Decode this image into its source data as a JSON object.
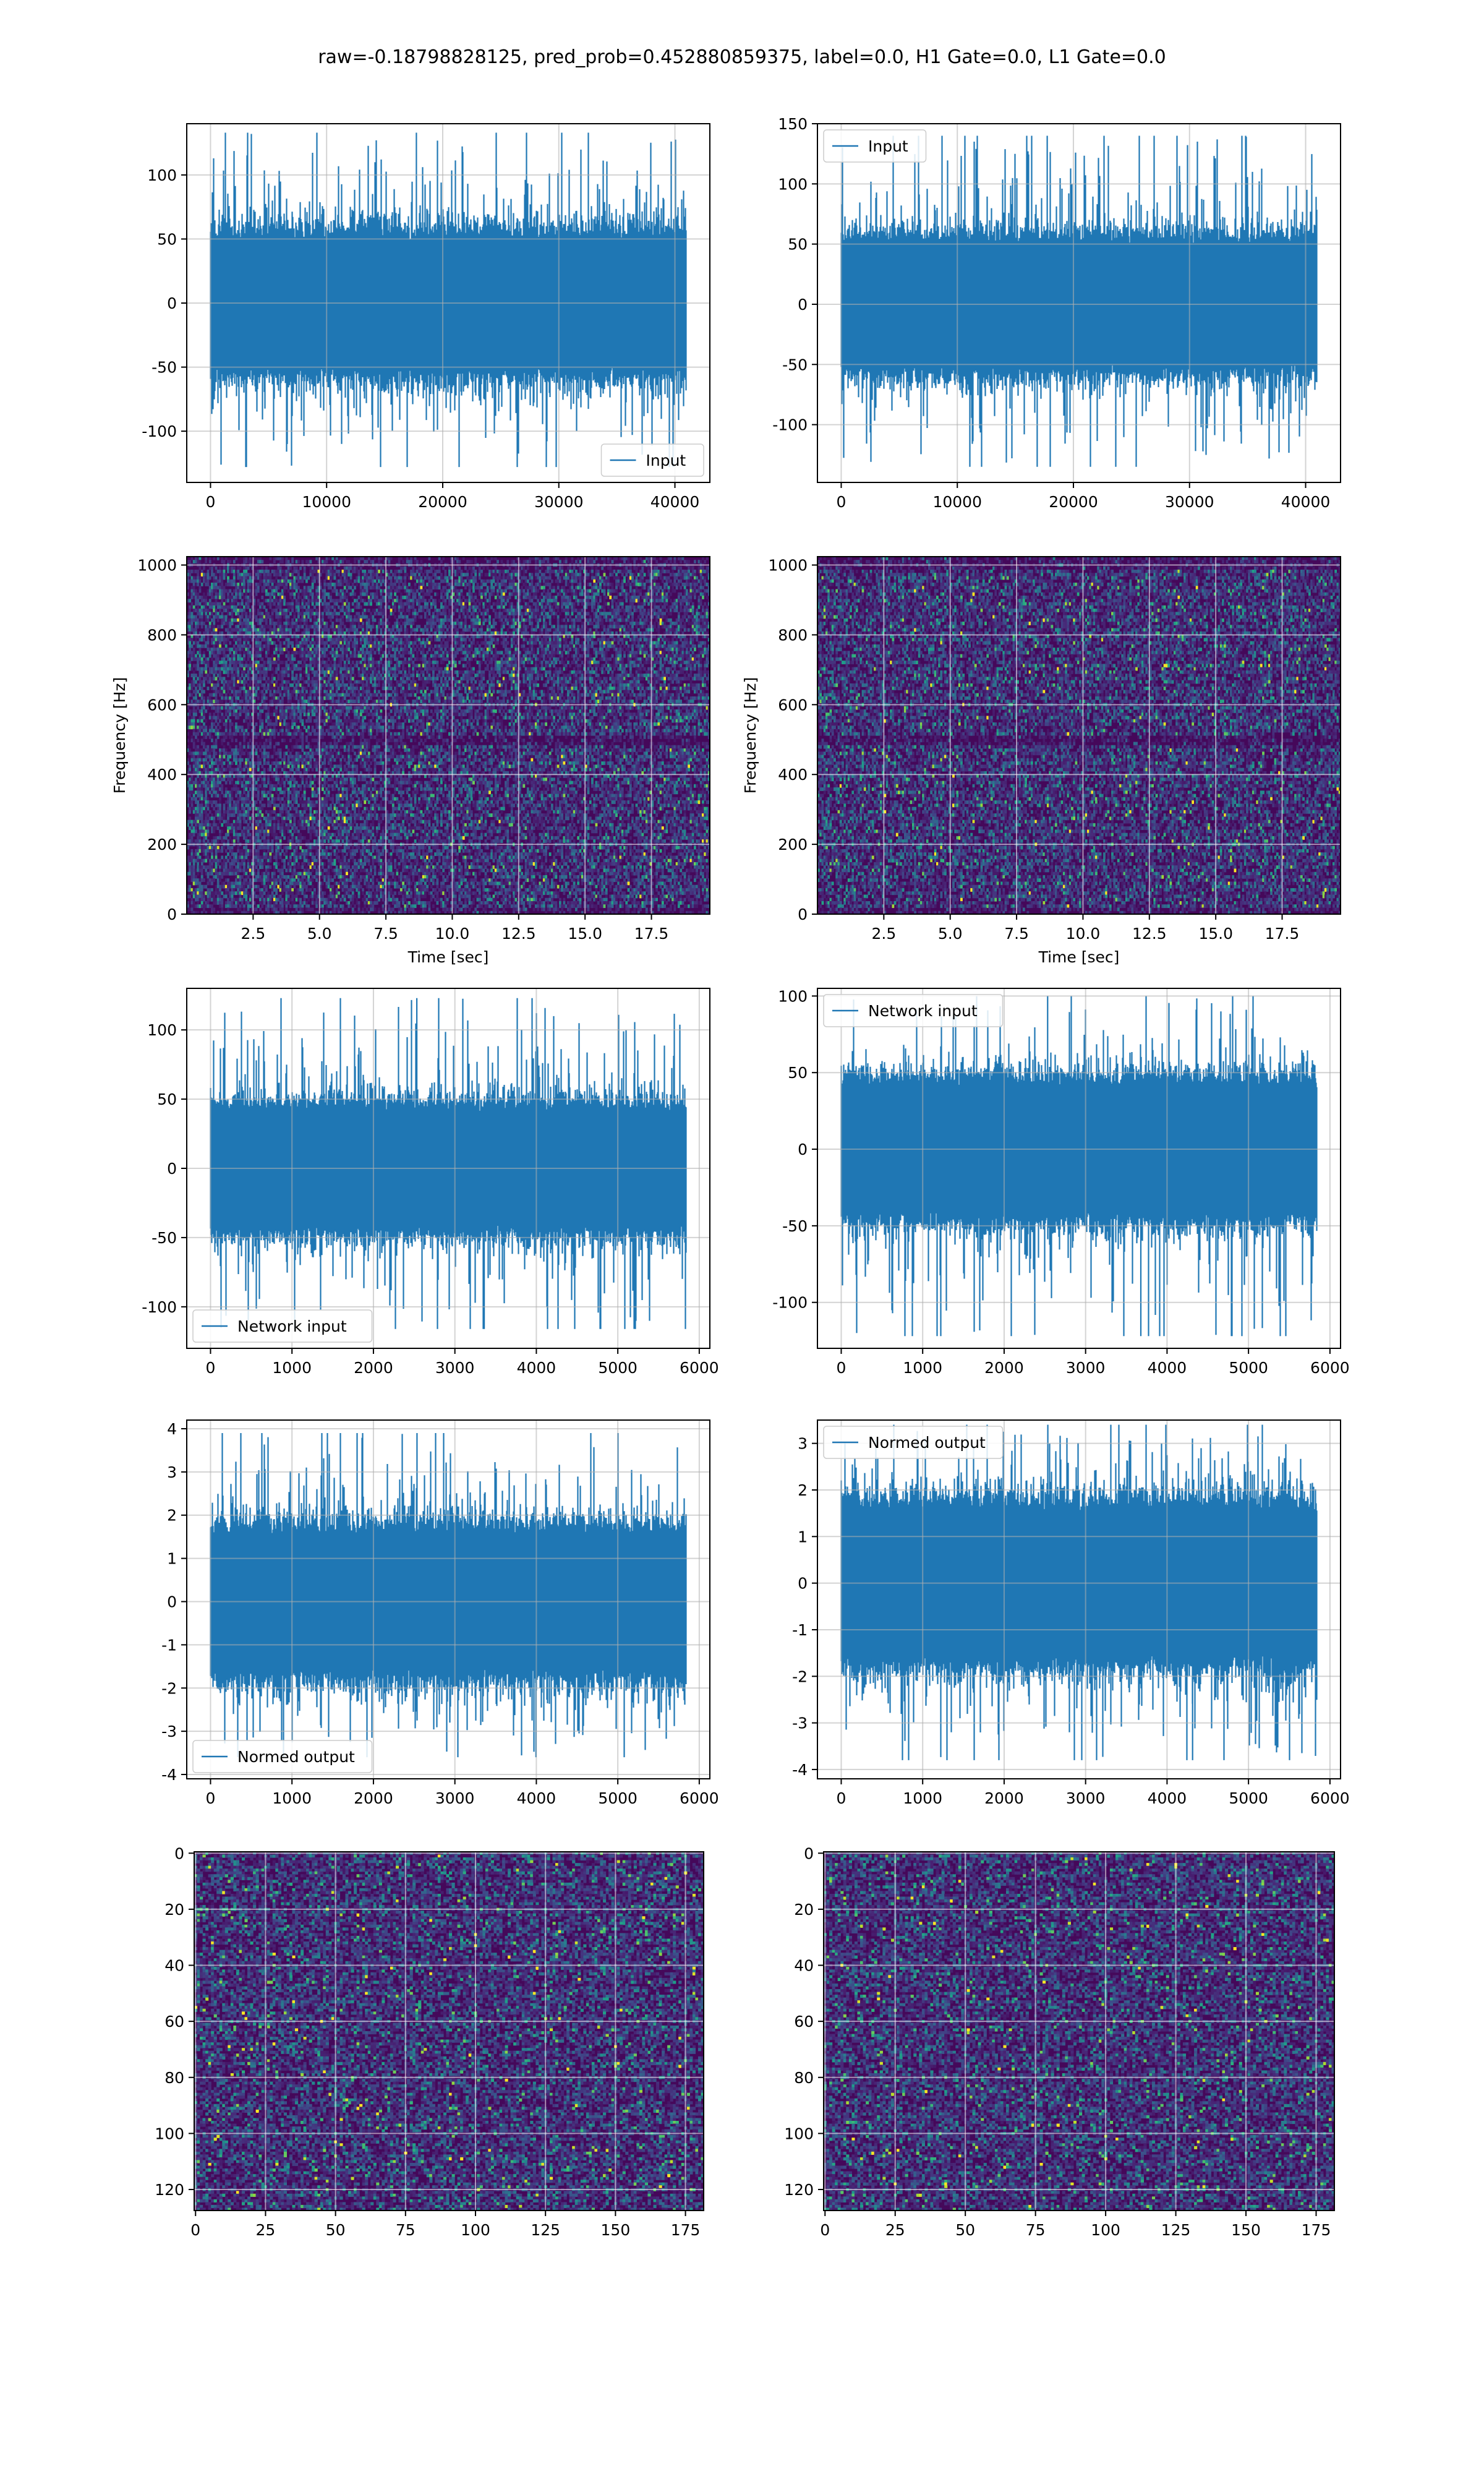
{
  "figure": {
    "suptitle": "raw=-0.18798828125, pred_prob=0.452880859375, label=0.0, H1 Gate=0.0, L1 Gate=0.0"
  },
  "chart_data": [
    {
      "id": "r1c1",
      "type": "line",
      "title": "",
      "xlabel": "",
      "ylabel": "",
      "xlim": [
        -2048,
        43008
      ],
      "ylim": [
        -140,
        140
      ],
      "xticks": [
        0,
        10000,
        20000,
        30000,
        40000
      ],
      "yticks": [
        -100,
        -50,
        0,
        50,
        100
      ],
      "grid": true,
      "legend": {
        "position": "lower-right",
        "entries": [
          "Input"
        ]
      },
      "series": [
        {
          "name": "Input",
          "color": "#1f77b4",
          "n_points": 40960,
          "x_range": [
            0,
            40960
          ],
          "envelope": {
            "core_amplitude": 55,
            "peak_max": 133,
            "peak_min": -128
          }
        }
      ]
    },
    {
      "id": "r1c2",
      "type": "line",
      "title": "",
      "xlabel": "",
      "ylabel": "",
      "xlim": [
        -2048,
        43008
      ],
      "ylim": [
        -148,
        150
      ],
      "xticks": [
        0,
        10000,
        20000,
        30000,
        40000
      ],
      "yticks": [
        -100,
        -50,
        0,
        50,
        100,
        150
      ],
      "grid": true,
      "legend": {
        "position": "upper-left",
        "entries": [
          "Input"
        ]
      },
      "series": [
        {
          "name": "Input",
          "color": "#1f77b4",
          "n_points": 40960,
          "x_range": [
            0,
            40960
          ],
          "envelope": {
            "core_amplitude": 55,
            "peak_max": 140,
            "peak_min": -135
          }
        }
      ]
    },
    {
      "id": "r2c1",
      "type": "heatmap",
      "title": "",
      "xlabel": "Time [sec]",
      "ylabel": "Frequency [Hz]",
      "xlim": [
        0,
        19.7
      ],
      "ylim": [
        0,
        1024
      ],
      "xticks": [
        2.5,
        5.0,
        7.5,
        10.0,
        12.5,
        15.0,
        17.5
      ],
      "yticks": [
        0,
        200,
        400,
        600,
        800,
        1000
      ],
      "grid": true,
      "colormap": "viridis",
      "note_band_hz": [
        480,
        510
      ]
    },
    {
      "id": "r2c2",
      "type": "heatmap",
      "title": "",
      "xlabel": "Time [sec]",
      "ylabel": "Frequency [Hz]",
      "xlim": [
        0,
        19.7
      ],
      "ylim": [
        0,
        1024
      ],
      "xticks": [
        2.5,
        5.0,
        7.5,
        10.0,
        12.5,
        15.0,
        17.5
      ],
      "yticks": [
        0,
        200,
        400,
        600,
        800,
        1000
      ],
      "grid": true,
      "colormap": "viridis",
      "note_band_hz": [
        480,
        510
      ]
    },
    {
      "id": "r3c1",
      "type": "line",
      "title": "",
      "xlabel": "",
      "ylabel": "",
      "xlim": [
        -292,
        6130
      ],
      "ylim": [
        -130,
        130
      ],
      "xticks": [
        0,
        1000,
        2000,
        3000,
        4000,
        5000,
        6000
      ],
      "yticks": [
        -100,
        -50,
        0,
        50,
        100
      ],
      "grid": true,
      "legend": {
        "position": "lower-left",
        "entries": [
          "Network input"
        ]
      },
      "series": [
        {
          "name": "Network input",
          "color": "#1f77b4",
          "n_points": 5840,
          "x_range": [
            0,
            5840
          ],
          "envelope": {
            "core_amplitude": 45,
            "peak_max": 123,
            "peak_min": -116
          }
        }
      ]
    },
    {
      "id": "r3c2",
      "type": "line",
      "title": "",
      "xlabel": "",
      "ylabel": "",
      "xlim": [
        -292,
        6130
      ],
      "ylim": [
        -130,
        105
      ],
      "xticks": [
        0,
        1000,
        2000,
        3000,
        4000,
        5000,
        6000
      ],
      "yticks": [
        -100,
        -50,
        0,
        50,
        100
      ],
      "grid": true,
      "legend": {
        "position": "upper-left",
        "entries": [
          "Network input"
        ]
      },
      "series": [
        {
          "name": "Network input",
          "color": "#1f77b4",
          "n_points": 5840,
          "x_range": [
            0,
            5840
          ],
          "envelope": {
            "core_amplitude": 45,
            "peak_max": 100,
            "peak_min": -122
          }
        }
      ]
    },
    {
      "id": "r4c1",
      "type": "line",
      "title": "",
      "xlabel": "",
      "ylabel": "",
      "xlim": [
        -292,
        6130
      ],
      "ylim": [
        -4.1,
        4.2
      ],
      "xticks": [
        0,
        1000,
        2000,
        3000,
        4000,
        5000,
        6000
      ],
      "yticks": [
        -4,
        -3,
        -2,
        -1,
        0,
        1,
        2,
        3,
        4
      ],
      "grid": true,
      "legend": {
        "position": "lower-left",
        "entries": [
          "Normed output"
        ]
      },
      "series": [
        {
          "name": "Normed output",
          "color": "#1f77b4",
          "n_points": 5840,
          "x_range": [
            0,
            5840
          ],
          "envelope": {
            "core_amplitude": 1.7,
            "peak_max": 3.9,
            "peak_min": -3.6
          }
        }
      ]
    },
    {
      "id": "r4c2",
      "type": "line",
      "title": "",
      "xlabel": "",
      "ylabel": "",
      "xlim": [
        -292,
        6130
      ],
      "ylim": [
        -4.2,
        3.5
      ],
      "xticks": [
        0,
        1000,
        2000,
        3000,
        4000,
        5000,
        6000
      ],
      "yticks": [
        -4,
        -3,
        -2,
        -1,
        0,
        1,
        2,
        3
      ],
      "grid": true,
      "legend": {
        "position": "upper-left",
        "entries": [
          "Normed output"
        ]
      },
      "series": [
        {
          "name": "Normed output",
          "color": "#1f77b4",
          "n_points": 5840,
          "x_range": [
            0,
            5840
          ],
          "envelope": {
            "core_amplitude": 1.7,
            "peak_max": 3.4,
            "peak_min": -3.8
          }
        }
      ]
    },
    {
      "id": "r5c1",
      "type": "heatmap",
      "title": "",
      "xlabel": "",
      "ylabel": "",
      "xlim": [
        -0.5,
        181.5
      ],
      "ylim": [
        127.5,
        -0.5
      ],
      "y_inverted": true,
      "xticks": [
        0,
        25,
        50,
        75,
        100,
        125,
        150,
        175
      ],
      "yticks": [
        0,
        20,
        40,
        60,
        80,
        100,
        120
      ],
      "grid": true,
      "colormap": "viridis",
      "shape": [
        128,
        182
      ]
    },
    {
      "id": "r5c2",
      "type": "heatmap",
      "title": "",
      "xlabel": "",
      "ylabel": "",
      "xlim": [
        -0.5,
        181.5
      ],
      "ylim": [
        127.5,
        -0.5
      ],
      "y_inverted": true,
      "xticks": [
        0,
        25,
        50,
        75,
        100,
        125,
        150,
        175
      ],
      "yticks": [
        0,
        20,
        40,
        60,
        80,
        100,
        120
      ],
      "grid": true,
      "colormap": "viridis",
      "shape": [
        128,
        182
      ]
    }
  ]
}
